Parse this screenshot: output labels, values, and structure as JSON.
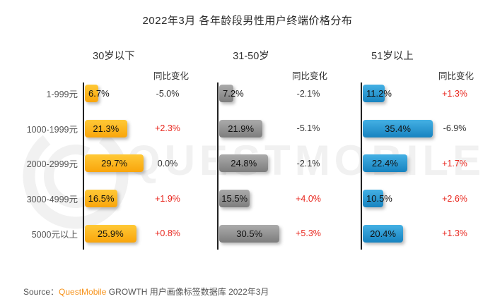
{
  "title": "2022年3月 各年龄段男性用户终端价格分布",
  "watermark": {
    "text": "QUESTMOBILE"
  },
  "yoy_header": "同比变化",
  "categories": [
    "1-999元",
    "1000-1999元",
    "2000-2999元",
    "3000-4999元",
    "5000元以上"
  ],
  "groups": [
    {
      "name": "30岁以下",
      "accent": "#f9a80e",
      "values": [
        6.7,
        21.3,
        29.7,
        16.5,
        25.9
      ],
      "value_labels": [
        "6.7%",
        "21.3%",
        "29.7%",
        "16.5%",
        "25.9%"
      ],
      "yoy": [
        "-5.0%",
        "+2.3%",
        "0.0%",
        "+1.9%",
        "+0.8%"
      ]
    },
    {
      "name": "31-50岁",
      "accent": "#8c8c8c",
      "values": [
        7.2,
        21.9,
        24.8,
        15.5,
        30.5
      ],
      "value_labels": [
        "7.2%",
        "21.9%",
        "24.8%",
        "15.5%",
        "30.5%"
      ],
      "yoy": [
        "-2.1%",
        "-5.1%",
        "-2.1%",
        "+4.0%",
        "+5.3%"
      ]
    },
    {
      "name": "51岁以上",
      "accent": "#1f93cf",
      "values": [
        11.2,
        35.4,
        22.4,
        10.5,
        20.4
      ],
      "value_labels": [
        "11.2%",
        "35.4%",
        "22.4%",
        "10.5%",
        "20.4%"
      ],
      "yoy": [
        "+1.3%",
        "-6.9%",
        "+1.7%",
        "+2.6%",
        "+1.3%"
      ]
    }
  ],
  "footer": {
    "source_label": "Source：",
    "brand": "QuestMobile",
    "text": " GROWTH 用户画像标签数据库 2022年3月"
  },
  "colors": {
    "positive_change": "#e8251c",
    "negative_change": "#333333",
    "bar_yellow": "#fbaf14",
    "bar_gray": "#8c8c8c",
    "bar_blue": "#2196d3",
    "brand_orange": "#f7941d",
    "watermark_gray": "#f1f1f1"
  },
  "chart_data": {
    "type": "bar",
    "orientation": "horizontal",
    "title": "2022年3月 各年龄段男性用户终端价格分布",
    "categories": [
      "1-999元",
      "1000-1999元",
      "2000-2999元",
      "3000-4999元",
      "5000元以上"
    ],
    "series": [
      {
        "name": "30岁以下",
        "values": [
          6.7,
          21.3,
          29.7,
          16.5,
          25.9
        ],
        "yoy_change": [
          -5.0,
          2.3,
          0.0,
          1.9,
          0.8
        ],
        "color": "#fbaf14"
      },
      {
        "name": "31-50岁",
        "values": [
          7.2,
          21.9,
          24.8,
          15.5,
          30.5
        ],
        "yoy_change": [
          -2.1,
          -5.1,
          -2.1,
          4.0,
          5.3
        ],
        "color": "#8c8c8c"
      },
      {
        "name": "51岁以上",
        "values": [
          11.2,
          35.4,
          22.4,
          10.5,
          20.4
        ],
        "yoy_change": [
          1.3,
          -6.9,
          1.7,
          2.6,
          1.3
        ],
        "color": "#2196d3"
      }
    ],
    "unit": "%",
    "value_axis_range": [
      0,
      40
    ],
    "grid": false,
    "legend_position": "none",
    "source": "Source：QuestMobile GROWTH 用户画像标签数据库 2022年3月"
  }
}
